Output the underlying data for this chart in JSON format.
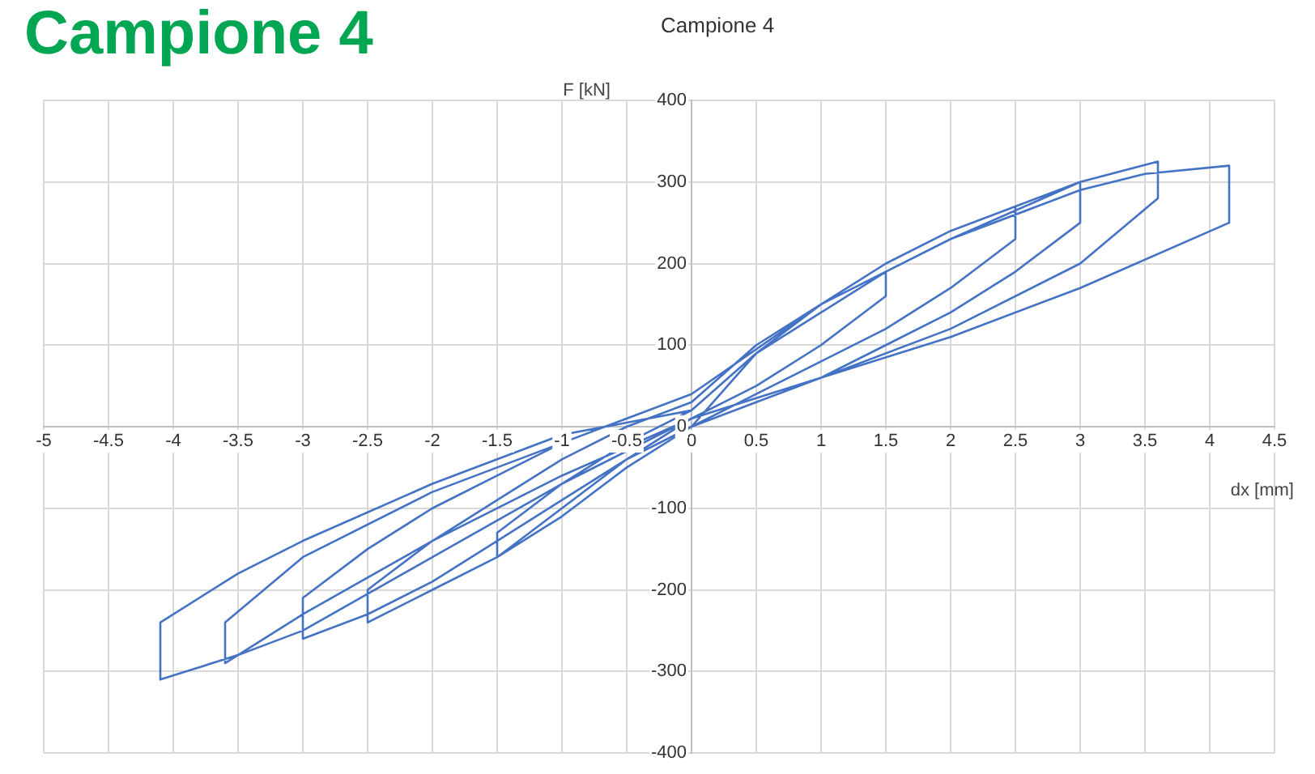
{
  "chart_data": {
    "type": "line",
    "title": "Campione 4",
    "subtitle": "Campione 4",
    "xlabel": "dx [mm]",
    "ylabel": "F [kN]",
    "x": [
      0,
      0.5,
      1,
      1.5,
      1.5,
      1,
      0.5,
      0,
      -0.5,
      -1,
      -1.5,
      -1.5,
      -1,
      -0.5,
      0,
      0.5,
      1,
      1.5,
      2,
      2.5,
      2.5,
      2,
      1.5,
      1,
      0.5,
      0,
      -0.5,
      -1,
      -1.5,
      -2,
      -2.5,
      -2.5,
      -2,
      -1.5,
      -1,
      -0.5,
      0,
      0.5,
      1,
      1.5,
      2,
      2.5,
      3,
      3,
      2.5,
      2,
      1.5,
      1,
      0.5,
      0,
      -0.5,
      -1,
      -1.5,
      -2,
      -2.5,
      -3,
      -3,
      -2.5,
      -2,
      -1.5,
      -1,
      -0.5,
      0,
      1,
      2,
      3,
      3.6,
      3.6,
      3,
      2,
      1,
      0,
      -1,
      -2,
      -3,
      -3.6,
      -3.6,
      -3,
      -2,
      -1,
      0,
      1,
      2,
      3,
      3.5,
      4.15,
      4.15,
      3,
      2,
      1,
      0,
      -1,
      -2,
      -3,
      -3.5,
      -4.1,
      -4.1,
      -3.5,
      -3,
      -2,
      -1,
      0
    ],
    "series": [
      {
        "color": "#4472c4",
        "values": [
          0,
          90,
          140,
          190,
          160,
          100,
          50,
          10,
          -40,
          -100,
          -160,
          -130,
          -70,
          -20,
          20,
          90,
          150,
          200,
          240,
          270,
          230,
          170,
          120,
          80,
          40,
          0,
          -50,
          -110,
          -160,
          -200,
          -240,
          -200,
          -140,
          -90,
          -40,
          0,
          30,
          100,
          150,
          200,
          240,
          270,
          300,
          250,
          190,
          140,
          100,
          60,
          30,
          0,
          -40,
          -90,
          -140,
          -190,
          -230,
          -260,
          -210,
          -150,
          -100,
          -60,
          -20,
          10,
          40,
          150,
          230,
          300,
          325,
          280,
          200,
          120,
          60,
          10,
          -60,
          -140,
          -230,
          -290,
          -240,
          -160,
          -80,
          -20,
          40,
          150,
          230,
          290,
          310,
          320,
          250,
          170,
          110,
          60,
          10,
          -70,
          -160,
          -250,
          -280,
          -310,
          -240,
          -180,
          -140,
          -70,
          -10,
          20
        ]
      }
    ],
    "xlim": [
      -5,
      4.5
    ],
    "xticks": [
      -5,
      -4.5,
      -4,
      -3.5,
      -3,
      -2.5,
      -2,
      -1.5,
      -1,
      -0.5,
      0,
      0.5,
      1,
      1.5,
      2,
      2.5,
      3,
      3.5,
      4,
      4.5
    ],
    "ylim": [
      -400,
      400
    ],
    "yticks": [
      -400,
      -300,
      -200,
      -100,
      0,
      100,
      200,
      300,
      400
    ],
    "grid": true,
    "marker": "none",
    "line_style": "solid"
  }
}
